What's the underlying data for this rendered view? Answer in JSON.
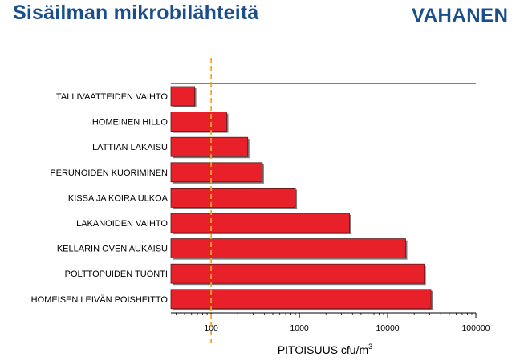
{
  "title": "Sisäilman mikrobilähteitä",
  "logo_text": "VAHANEN",
  "colors": {
    "title": "#1a4f8b",
    "bar_fill": "#e8202a",
    "bar_border": "#5a1a1a",
    "reference_line": "#f5a623"
  },
  "chart_data": {
    "type": "bar",
    "orientation": "horizontal",
    "xscale": "log",
    "xlim": [
      35,
      100000
    ],
    "xticks": [
      100,
      1000,
      10000,
      100000
    ],
    "xtick_labels": [
      "100",
      "1000",
      "10000",
      "100000"
    ],
    "xlabel": "PITOISUUS cfu/m",
    "xlabel_sup": "3",
    "reference_line_x": 100,
    "categories": [
      "TALLIVAATTEIDEN VAIHTO",
      "HOMEINEN HILLO",
      "LATTIAN LAKAISU",
      "PERUNOIDEN KUORIMINEN",
      "KISSA JA KOIRA ULKOA",
      "LAKANOIDEN VAIHTO",
      "KELLARIN OVEN AUKAISU",
      "POLTTOPUIDEN TUONTI",
      "HOMEISEN LEIVÄN POISHEITTO"
    ],
    "values": [
      65,
      150,
      260,
      380,
      900,
      3700,
      16000,
      26000,
      31000
    ],
    "grid": false
  }
}
